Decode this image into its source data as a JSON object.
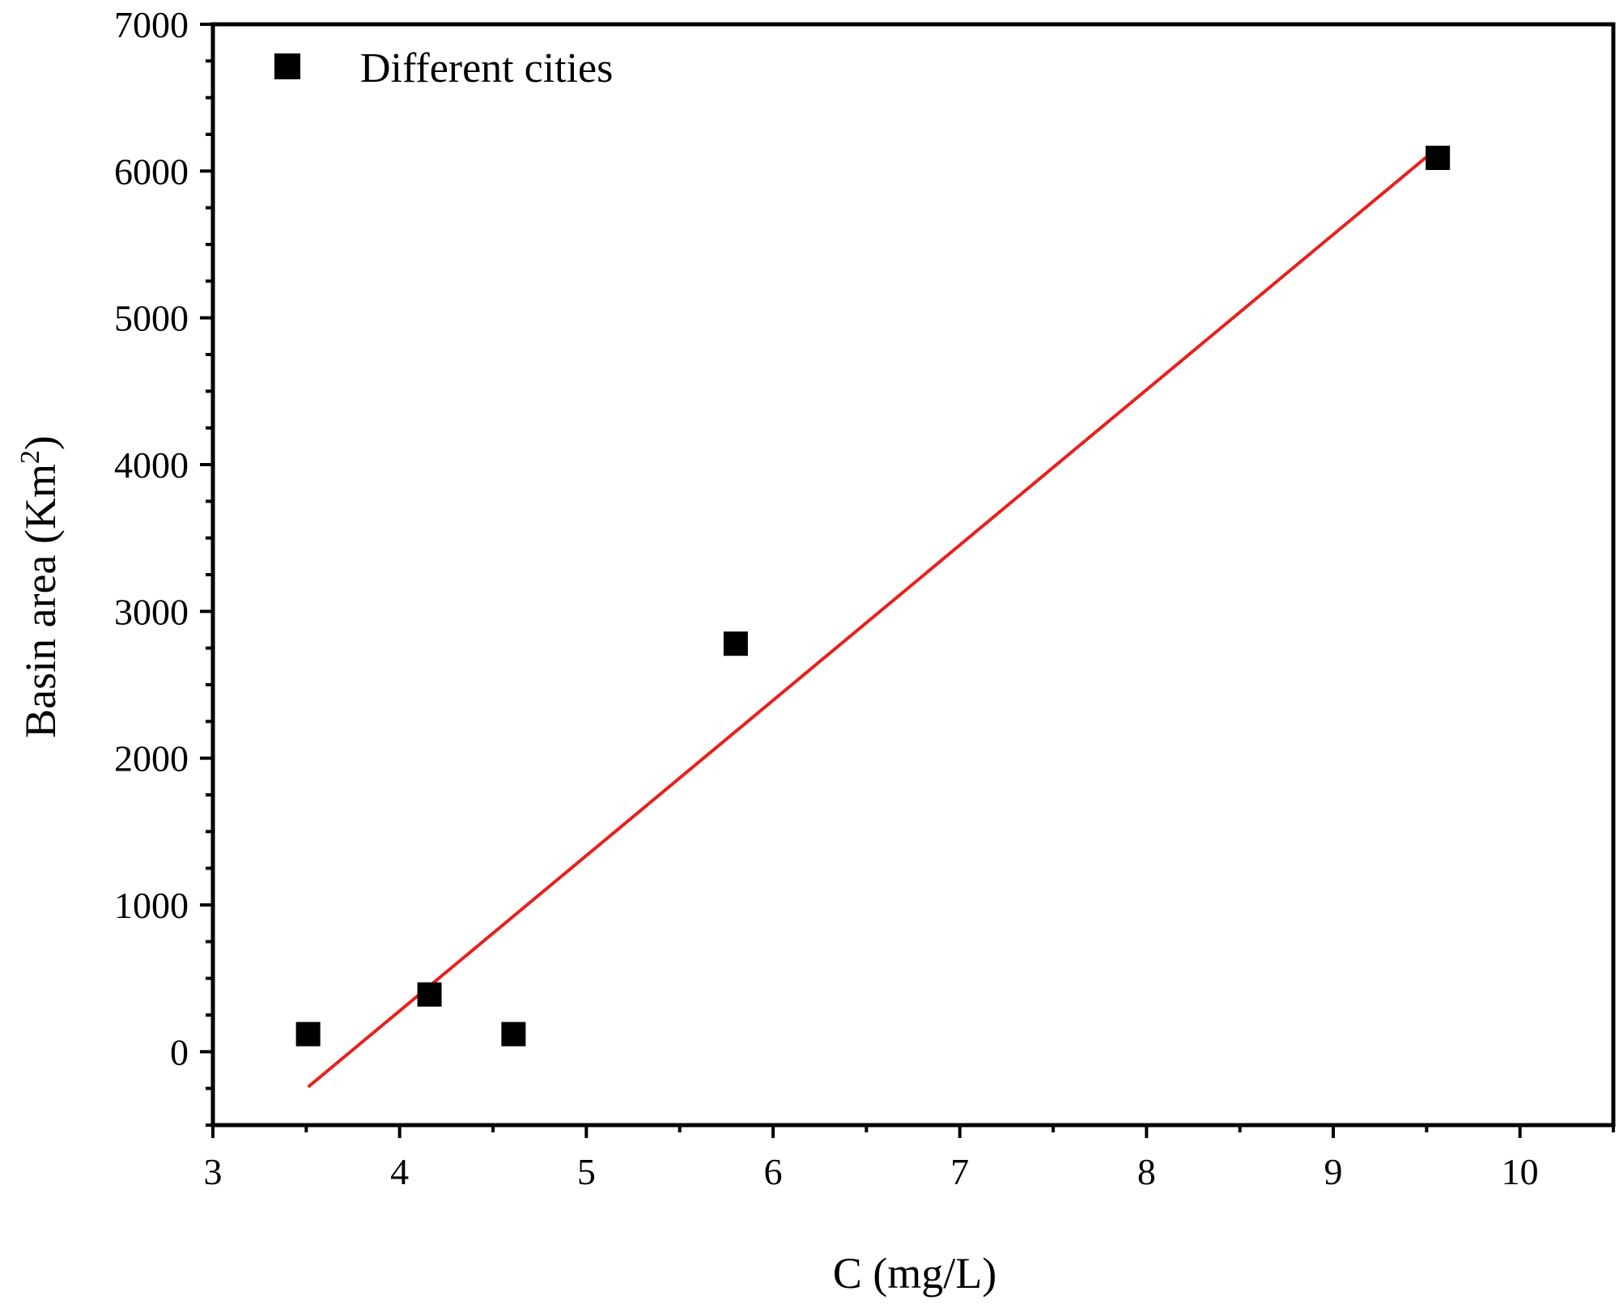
{
  "chart_data": {
    "type": "scatter",
    "title": "",
    "xlabel": "C (mg/L)",
    "ylabel": "Basin area (Km",
    "ylabel_superscript": "2",
    "ylabel_close": ")",
    "xlim": [
      3,
      10.5
    ],
    "ylim": [
      -500,
      7000
    ],
    "xticks": [
      3,
      4,
      5,
      6,
      7,
      8,
      9,
      10
    ],
    "yticks": [
      0,
      1000,
      2000,
      3000,
      4000,
      5000,
      6000,
      7000
    ],
    "legend": {
      "label": "Different cities",
      "placement": "top-left"
    },
    "series": [
      {
        "name": "Different cities",
        "marker": "square",
        "color": "#000000",
        "x": [
          3.51,
          4.16,
          4.61,
          5.8,
          9.56
        ],
        "y": [
          120,
          390,
          120,
          2780,
          6090
        ]
      }
    ],
    "fit_line": {
      "color": "#e8201c",
      "x": [
        3.51,
        9.56
      ],
      "y": [
        -240,
        6160
      ]
    }
  }
}
